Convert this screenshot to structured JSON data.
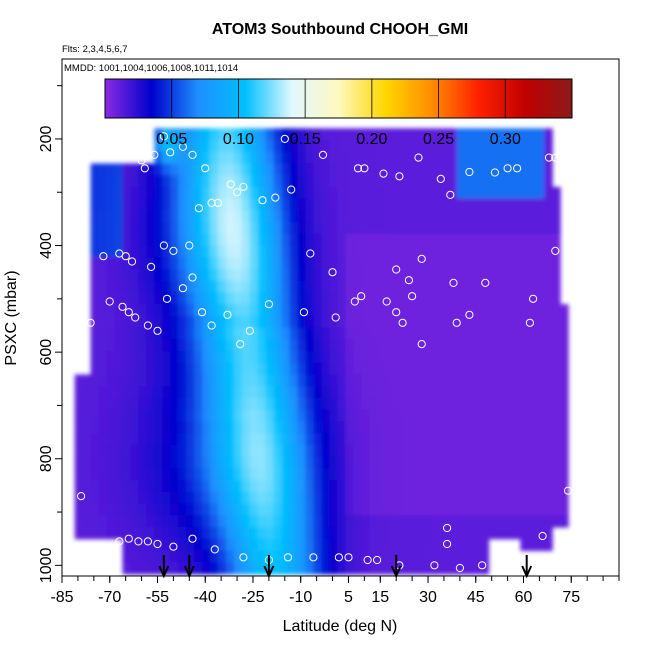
{
  "header": {
    "title": "ATOM3 Southbound CHOOH_GMI",
    "flights_note": "Flts: 2,3,4,5,6,7",
    "dates_note": "MMDD: 1001,1004,1006,1008,1011,1014"
  },
  "chart_data": {
    "type": "heatmap",
    "title": "ATOM3 Southbound CHOOH_GMI",
    "xlabel": "Latitude (deg N)",
    "ylabel": "PSXC (mbar)",
    "xlim": [
      -85,
      90
    ],
    "ylim": [
      1020,
      50
    ],
    "y_reversed": true,
    "grid": false,
    "x_ticks": [
      -85,
      -70,
      -55,
      -40,
      -25,
      -10,
      5,
      15,
      30,
      45,
      60,
      75
    ],
    "y_ticks": [
      200,
      400,
      600,
      800,
      1000
    ],
    "colorbar": {
      "min": 0.0,
      "max": 0.35,
      "ticks": [
        0.05,
        0.1,
        0.15,
        0.2,
        0.25,
        0.3
      ],
      "tick_labels": [
        "0.05",
        "0.10",
        "0.15",
        "0.20",
        "0.25",
        "0.30"
      ],
      "colors": [
        "#8a2be2",
        "#0000cd",
        "#1e90ff",
        "#00bfff",
        "#e0f8ff",
        "#fff8c0",
        "#ffd700",
        "#ff8c00",
        "#ff2000",
        "#c00000",
        "#8b1a1a"
      ]
    },
    "field": {
      "lat_range": [
        -81,
        72
      ],
      "pressure_range": [
        180,
        1010
      ],
      "description_of_pattern": "low background with enhanced band near -45 to -10 deg N"
    },
    "profile_markers_lat": [
      -53,
      -45,
      -20,
      20,
      61
    ],
    "observation_points": [
      {
        "lat": -78,
        "p": 230
      },
      {
        "lat": -70,
        "p": 230
      },
      {
        "lat": -64,
        "p": 230
      },
      {
        "lat": -62,
        "p": 230
      },
      {
        "lat": -60,
        "p": 240
      },
      {
        "lat": -59,
        "p": 255
      },
      {
        "lat": -56,
        "p": 230
      },
      {
        "lat": -53,
        "p": 195
      },
      {
        "lat": -51,
        "p": 225
      },
      {
        "lat": -47,
        "p": 215
      },
      {
        "lat": -44,
        "p": 230
      },
      {
        "lat": -40,
        "p": 255
      },
      {
        "lat": -32,
        "p": 285
      },
      {
        "lat": -28,
        "p": 290
      },
      {
        "lat": -22,
        "p": 315
      },
      {
        "lat": -15,
        "p": 200
      },
      {
        "lat": -13,
        "p": 295
      },
      {
        "lat": -3,
        "p": 230
      },
      {
        "lat": 8,
        "p": 255
      },
      {
        "lat": 10,
        "p": 255
      },
      {
        "lat": 16,
        "p": 265
      },
      {
        "lat": 21,
        "p": 270
      },
      {
        "lat": 27,
        "p": 235
      },
      {
        "lat": 34,
        "p": 275
      },
      {
        "lat": 37,
        "p": 305
      },
      {
        "lat": 43,
        "p": 262
      },
      {
        "lat": 51,
        "p": 263
      },
      {
        "lat": 55,
        "p": 255
      },
      {
        "lat": 58,
        "p": 255
      },
      {
        "lat": 68,
        "p": 235
      },
      {
        "lat": 70,
        "p": 235
      },
      {
        "lat": 73,
        "p": 235
      },
      {
        "lat": -81,
        "p": 375
      },
      {
        "lat": -79,
        "p": 395
      },
      {
        "lat": -72,
        "p": 420
      },
      {
        "lat": -67,
        "p": 415
      },
      {
        "lat": -65,
        "p": 420
      },
      {
        "lat": -63,
        "p": 430
      },
      {
        "lat": -57,
        "p": 440
      },
      {
        "lat": -53,
        "p": 400
      },
      {
        "lat": -50,
        "p": 410
      },
      {
        "lat": -45,
        "p": 400
      },
      {
        "lat": -42,
        "p": 330
      },
      {
        "lat": -38,
        "p": 320
      },
      {
        "lat": -36,
        "p": 320
      },
      {
        "lat": -30,
        "p": 300
      },
      {
        "lat": -18,
        "p": 310
      },
      {
        "lat": -7,
        "p": 415
      },
      {
        "lat": 0,
        "p": 450
      },
      {
        "lat": 20,
        "p": 445
      },
      {
        "lat": 24,
        "p": 465
      },
      {
        "lat": 25,
        "p": 495
      },
      {
        "lat": 28,
        "p": 425
      },
      {
        "lat": 38,
        "p": 470
      },
      {
        "lat": 48,
        "p": 470
      },
      {
        "lat": 70,
        "p": 410
      },
      {
        "lat": 63,
        "p": 500
      },
      {
        "lat": -76,
        "p": 545
      },
      {
        "lat": -70,
        "p": 505
      },
      {
        "lat": -66,
        "p": 515
      },
      {
        "lat": -64,
        "p": 525
      },
      {
        "lat": -62,
        "p": 535
      },
      {
        "lat": -58,
        "p": 550
      },
      {
        "lat": -55,
        "p": 560
      },
      {
        "lat": -52,
        "p": 500
      },
      {
        "lat": -47,
        "p": 480
      },
      {
        "lat": -44,
        "p": 460
      },
      {
        "lat": -41,
        "p": 525
      },
      {
        "lat": -38,
        "p": 550
      },
      {
        "lat": -33,
        "p": 530
      },
      {
        "lat": -29,
        "p": 585
      },
      {
        "lat": -26,
        "p": 560
      },
      {
        "lat": -20,
        "p": 510
      },
      {
        "lat": -9,
        "p": 525
      },
      {
        "lat": 1,
        "p": 535
      },
      {
        "lat": 7,
        "p": 505
      },
      {
        "lat": 9,
        "p": 495
      },
      {
        "lat": 17,
        "p": 505
      },
      {
        "lat": 20,
        "p": 525
      },
      {
        "lat": 22,
        "p": 545
      },
      {
        "lat": 28,
        "p": 585
      },
      {
        "lat": 39,
        "p": 545
      },
      {
        "lat": 43,
        "p": 530
      },
      {
        "lat": 62,
        "p": 545
      },
      {
        "lat": 74,
        "p": 860
      },
      {
        "lat": -79,
        "p": 870
      },
      {
        "lat": -67,
        "p": 955
      },
      {
        "lat": -64,
        "p": 950
      },
      {
        "lat": -61,
        "p": 955
      },
      {
        "lat": -58,
        "p": 955
      },
      {
        "lat": -55,
        "p": 960
      },
      {
        "lat": -50,
        "p": 965
      },
      {
        "lat": -44,
        "p": 950
      },
      {
        "lat": -37,
        "p": 970
      },
      {
        "lat": -28,
        "p": 985
      },
      {
        "lat": -20,
        "p": 990
      },
      {
        "lat": -14,
        "p": 985
      },
      {
        "lat": -6,
        "p": 985
      },
      {
        "lat": 2,
        "p": 985
      },
      {
        "lat": 5,
        "p": 985
      },
      {
        "lat": 11,
        "p": 990
      },
      {
        "lat": 14,
        "p": 990
      },
      {
        "lat": 21,
        "p": 1000
      },
      {
        "lat": 32,
        "p": 1000
      },
      {
        "lat": 36,
        "p": 960
      },
      {
        "lat": 40,
        "p": 1005
      },
      {
        "lat": 47,
        "p": 1000
      },
      {
        "lat": 66,
        "p": 945
      },
      {
        "lat": 36,
        "p": 930
      }
    ]
  }
}
